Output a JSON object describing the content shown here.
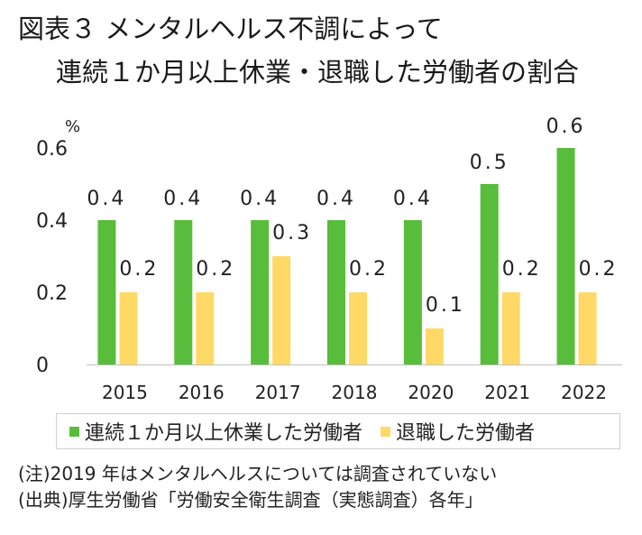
{
  "title_line1": "図表３ メンタルヘルス不調によって",
  "title_line2": "連続１か月以上休業・退職した労働者の割合",
  "notes": [
    "(注)2019 年はメンタルヘルスについては調査されていない",
    "(出典)厚生労働省「労働安全衛生調査（実態調査）各年」"
  ],
  "chart_data": {
    "type": "bar",
    "unit_label": "%",
    "categories": [
      "2015",
      "2016",
      "2017",
      "2018",
      "2020",
      "2021",
      "2022"
    ],
    "series": [
      {
        "name": "連続１か月以上休業した労働者",
        "color": "#58bd3a",
        "values": [
          0.4,
          0.4,
          0.4,
          0.4,
          0.4,
          0.5,
          0.6
        ]
      },
      {
        "name": "退職した労働者",
        "color": "#ffd966",
        "values": [
          0.2,
          0.2,
          0.3,
          0.2,
          0.1,
          0.2,
          0.2
        ]
      }
    ],
    "yticks": [
      "0",
      "0.2",
      "0.4",
      "0.6"
    ],
    "ylim": [
      0,
      0.6
    ],
    "grid": false,
    "legend_position": "bottom"
  }
}
